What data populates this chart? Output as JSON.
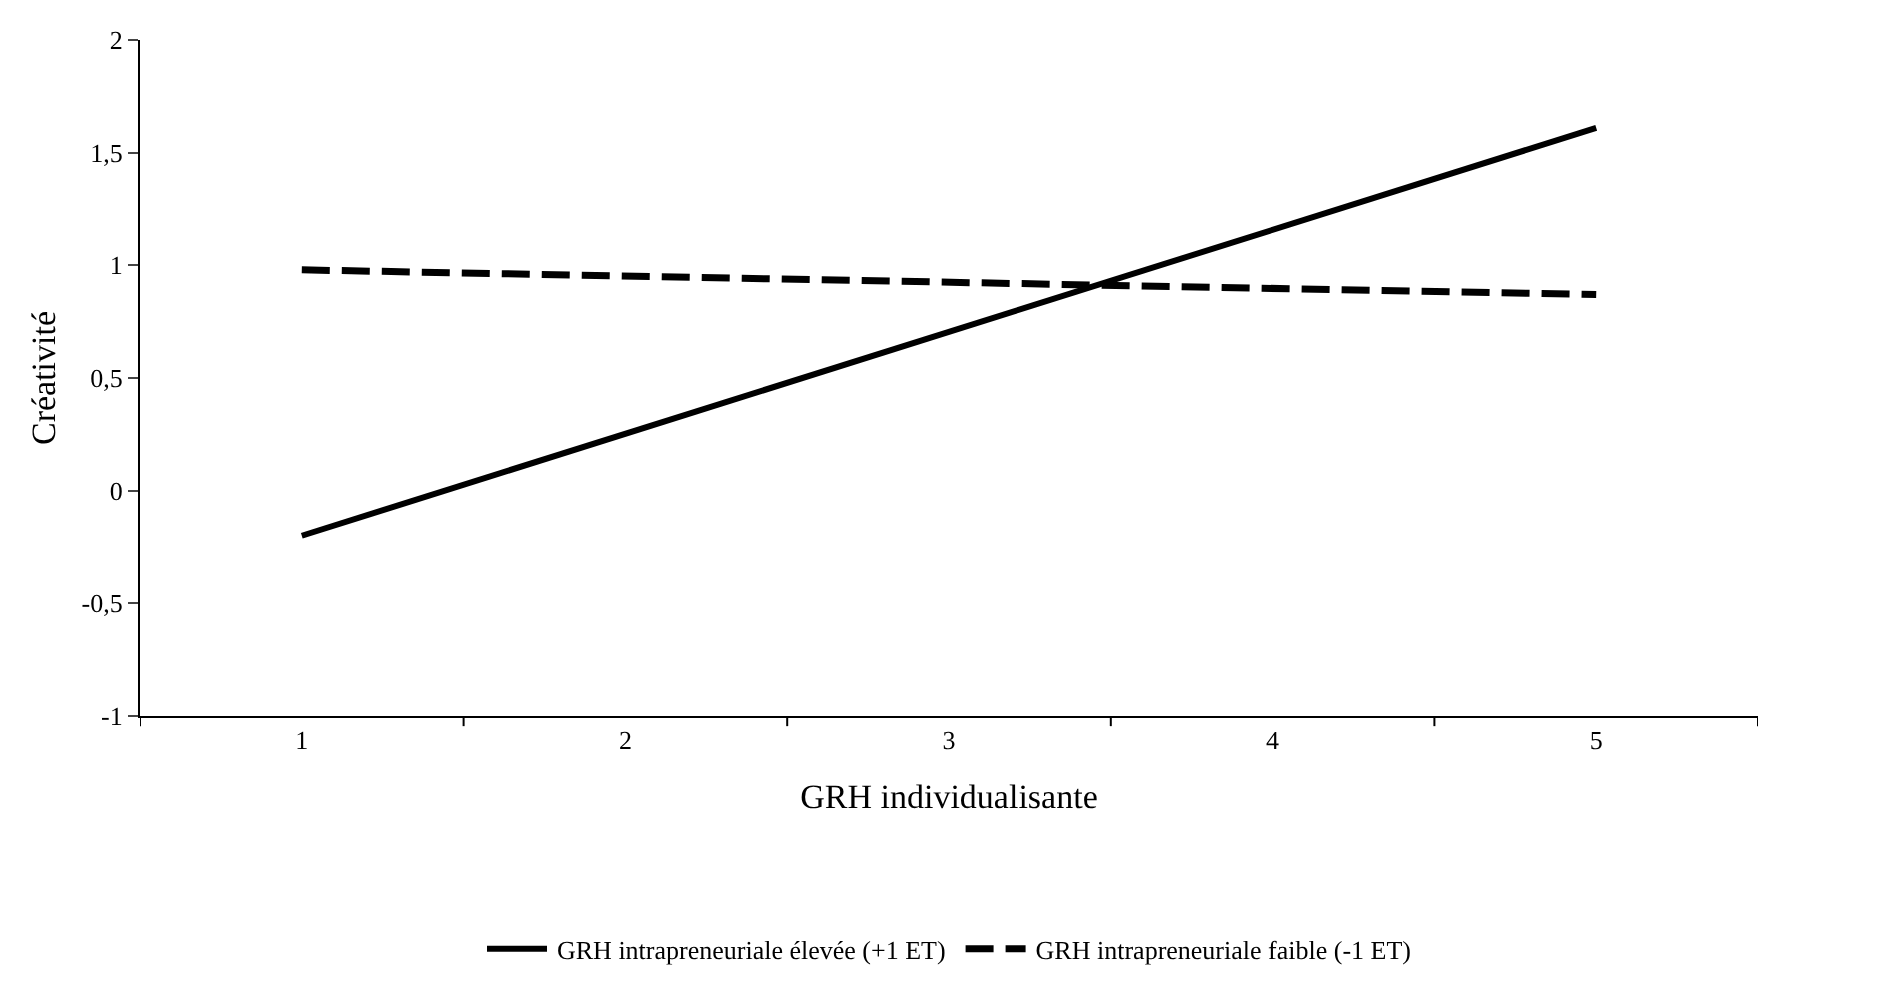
{
  "chart_data": {
    "type": "line",
    "xlabel": "GRH individualisante",
    "ylabel": "Créativité",
    "categories": [
      "1",
      "2",
      "3",
      "4",
      "5"
    ],
    "series": [
      {
        "name": "GRH intrapreneuriale élevée (+1 ET)",
        "color": "#000000",
        "values": [
          -0.2,
          null,
          null,
          null,
          1.61
        ],
        "line_style": "solid"
      },
      {
        "name": "GRH intrapreneuriale faible (-1 ET)",
        "color": "#000000",
        "values": [
          0.98,
          null,
          null,
          null,
          0.87
        ],
        "line_style": "dashed"
      }
    ],
    "ylim": [
      -1,
      2
    ],
    "yticks": [
      -1,
      {
        "value": -0.5,
        "label": "-0,5"
      },
      0,
      {
        "value": 0.5,
        "label": "0,5"
      },
      1,
      {
        "value": 1.5,
        "label": "1,5"
      },
      2
    ],
    "legend": "bottom",
    "marker": "none"
  }
}
